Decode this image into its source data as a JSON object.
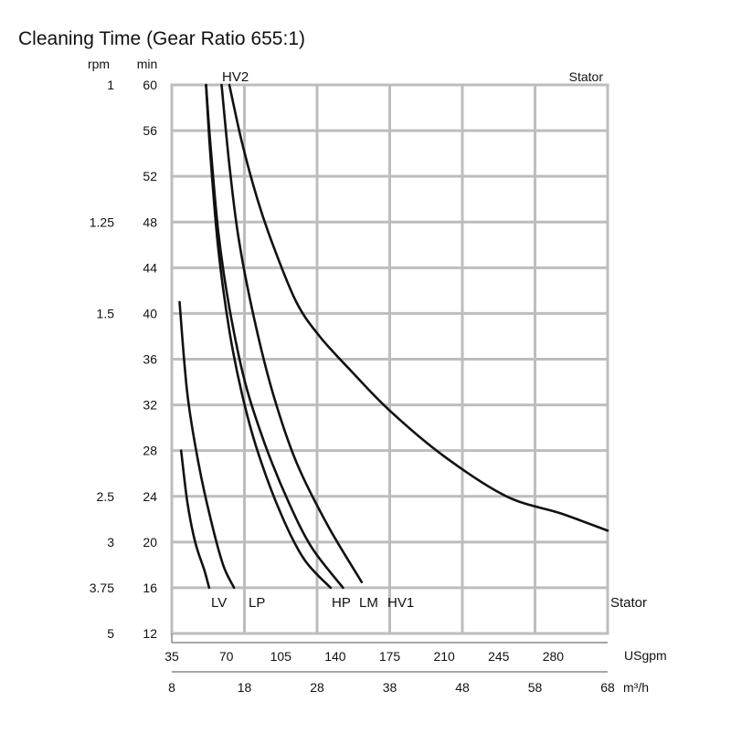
{
  "chart_data": {
    "type": "line",
    "title": "Cleaning Time (Gear Ratio 655:1)",
    "y_unit": "min",
    "ylim": [
      12,
      60
    ],
    "y_ticks": [
      "12",
      "16",
      "20",
      "24",
      "28",
      "32",
      "36",
      "40",
      "44",
      "48",
      "52",
      "56",
      "60"
    ],
    "rpm_unit": "rpm",
    "rpm_ticks": [
      {
        "label": "1",
        "at_min": 60
      },
      {
        "label": "1.25",
        "at_min": 48
      },
      {
        "label": "1.5",
        "at_min": 40
      },
      {
        "label": "2.5",
        "at_min": 24
      },
      {
        "label": "3",
        "at_min": 20
      },
      {
        "label": "3.75",
        "at_min": 16
      },
      {
        "label": "5",
        "at_min": 12
      }
    ],
    "x_unit": "USgpm",
    "xlim": [
      35,
      315
    ],
    "x_ticks": [
      "35",
      "70",
      "105",
      "140",
      "175",
      "210",
      "245",
      "280"
    ],
    "x2_unit": "m³/h",
    "x2_ticks": [
      "8",
      "18",
      "28",
      "38",
      "48",
      "58",
      "68"
    ],
    "x2_lim": [
      8,
      68
    ],
    "grid": true,
    "stator_label_top": "Stator",
    "stator_label_bottom": "Stator",
    "series": [
      {
        "name": "LV",
        "x": [
          41,
          45,
          50,
          56,
          59
        ],
        "y": [
          28,
          23.5,
          20,
          17.5,
          16
        ]
      },
      {
        "name": "LP",
        "x": [
          40,
          45,
          52,
          60,
          68,
          75
        ],
        "y": [
          41,
          33,
          27,
          22,
          18,
          16
        ]
      },
      {
        "name": "HP",
        "x": [
          57,
          60,
          65,
          72,
          80,
          90,
          105,
          120,
          137
        ],
        "y": [
          60,
          53.5,
          45.5,
          38.5,
          33,
          28,
          22.5,
          18.5,
          16
        ]
      },
      {
        "name": "LM",
        "x": [
          57,
          60,
          65,
          72,
          82,
          95,
          110,
          125,
          145
        ],
        "y": [
          60,
          54.5,
          47,
          40.5,
          34,
          28.5,
          23.5,
          19.5,
          16
        ]
      },
      {
        "name": "HV1",
        "x": [
          67,
          72,
          78,
          88,
          100,
          115,
          135,
          157
        ],
        "y": [
          60,
          53,
          46.5,
          39.5,
          33,
          27,
          21.5,
          16.5
        ]
      },
      {
        "name": "HV2",
        "x": [
          72,
          80,
          90,
          100,
          115,
          130,
          150,
          175,
          210,
          250,
          285,
          315
        ],
        "y": [
          60,
          55,
          50,
          46,
          41,
          38,
          35,
          31.5,
          27.5,
          24,
          22.5,
          21
        ]
      }
    ]
  }
}
